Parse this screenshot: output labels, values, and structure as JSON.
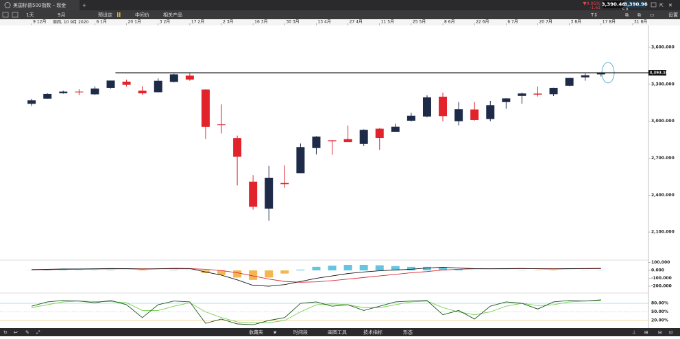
{
  "tab": {
    "title": "美国标普500指数 – 现金"
  },
  "quote": {
    "change_pct": "▼0.05%",
    "change": "-1.61",
    "sell": "3,390.46",
    "buy": "3,390.96",
    "spread": "5.0"
  },
  "toolbar": {
    "interval": "1天",
    "range": "9月",
    "items": [
      "预设定",
      "中间价",
      "相关产品"
    ],
    "settings": "设置"
  },
  "footer": {
    "items": [
      "收藏夹",
      "时间段",
      "画图工具",
      "技术指标",
      "形态"
    ]
  },
  "chart_data": [
    {
      "type": "candlestick",
      "crosshair_label": "周四, 10 9月 2020",
      "xlim": [
        -2,
        39
      ],
      "xticks": [
        {
          "value": 0,
          "label": "9 12月"
        },
        {
          "value": 4,
          "label": "6 1月"
        },
        {
          "value": 6,
          "label": "20 1月"
        },
        {
          "value": 8,
          "label": "3 2月"
        },
        {
          "value": 10,
          "label": "17 2月"
        },
        {
          "value": 12,
          "label": "2 3月"
        },
        {
          "value": 14,
          "label": "16 3月"
        },
        {
          "value": 16,
          "label": "30 3月"
        },
        {
          "value": 18,
          "label": "13 4月"
        },
        {
          "value": 20,
          "label": "27 4月"
        },
        {
          "value": 22,
          "label": "11 5月"
        },
        {
          "value": 24,
          "label": "25 5月"
        },
        {
          "value": 26,
          "label": "8 6月"
        },
        {
          "value": 28,
          "label": "22 6月"
        },
        {
          "value": 30,
          "label": "6 7月"
        },
        {
          "value": 32,
          "label": "20 7月"
        },
        {
          "value": 34,
          "label": "3 8月"
        },
        {
          "value": 36,
          "label": "17 8月"
        },
        {
          "value": 38,
          "label": "31 8月"
        }
      ],
      "ylim": [
        1877.8,
        3777.8
      ],
      "yticks": [
        {
          "value": 3600,
          "label": "3,600.000"
        },
        {
          "value": 3300,
          "label": "3,300.000"
        },
        {
          "value": 3000,
          "label": "3,000.000"
        },
        {
          "value": 2700,
          "label": "2,700.000"
        },
        {
          "value": 2400,
          "label": "2,400.000"
        },
        {
          "value": 2100,
          "label": "2,100.000"
        }
      ],
      "open": [
        3141,
        3183,
        3227,
        3240,
        3218,
        3271,
        3321,
        3248,
        3235,
        3319,
        3370,
        3257,
        2974,
        2863,
        2509,
        2290,
        2498,
        2578,
        2782,
        2845,
        2854,
        2815,
        2939,
        2914,
        3004,
        3038,
        3199,
        3000,
        3095,
        3018,
        3155,
        3205,
        3224,
        3219,
        3288,
        3356,
        3380
      ],
      "high": [
        3182,
        3226,
        3248,
        3259,
        3282,
        3329,
        3337,
        3285,
        3347,
        3385,
        3393,
        3259,
        3136,
        2883,
        2562,
        2637,
        2641,
        2819,
        2879,
        2845,
        2965,
        2934,
        2945,
        2980,
        3068,
        3211,
        3233,
        3155,
        3155,
        3165,
        3186,
        3233,
        3280,
        3272,
        3352,
        3387,
        3395
      ],
      "low": [
        3123,
        3183,
        3223,
        3212,
        3214,
        3264,
        3281,
        3214,
        3235,
        3315,
        3328,
        2855,
        2900,
        2478,
        2281,
        2192,
        2459,
        2578,
        2730,
        2727,
        2847,
        2798,
        2767,
        2914,
        2998,
        3032,
        2999,
        2966,
        3005,
        3000,
        3101,
        3142,
        3200,
        3204,
        3284,
        3329,
        3362
      ],
      "close": [
        3169,
        3221,
        3240,
        3235,
        3265,
        3330,
        3295,
        3226,
        3328,
        3380,
        3338,
        2954,
        2972,
        2711,
        2305,
        2541,
        2489,
        2790,
        2875,
        2837,
        2830,
        2930,
        2864,
        2955,
        3044,
        3194,
        3041,
        3097,
        3009,
        3130,
        3185,
        3225,
        3216,
        3271,
        3351,
        3373,
        3390.46
      ],
      "up_color": "#1d2b48",
      "down_color": "#e2232b",
      "hline": {
        "value": 3393.108,
        "label": "3,393.108"
      }
    },
    {
      "type": "macd",
      "ylim": [
        -278,
        122
      ],
      "yticks": [
        {
          "value": 100,
          "label": "100.000"
        },
        {
          "value": 0,
          "label": "0.000"
        },
        {
          "value": -100,
          "label": "-100.000"
        },
        {
          "value": -200,
          "label": "-200.000"
        }
      ],
      "macd": {
        "color": "#111111",
        "values": [
          10,
          14,
          18,
          18,
          20,
          24,
          22,
          16,
          20,
          26,
          24,
          -20,
          -60,
          -120,
          -190,
          -200,
          -180,
          -140,
          -100,
          -70,
          -40,
          -20,
          -5,
          5,
          15,
          30,
          40,
          30,
          22,
          20,
          22,
          25,
          20,
          18,
          22,
          24,
          26
        ]
      },
      "signal": {
        "color": "#d8262e",
        "values": [
          8,
          10,
          13,
          15,
          17,
          19,
          21,
          20,
          20,
          21,
          22,
          14,
          -2,
          -30,
          -70,
          -110,
          -140,
          -150,
          -145,
          -130,
          -110,
          -90,
          -70,
          -50,
          -30,
          -15,
          5,
          15,
          20,
          20,
          21,
          22,
          22,
          21,
          21,
          22,
          23
        ]
      },
      "histogram": {
        "up_color": "#3db6da",
        "down_color": "#f3a425",
        "values": [
          2,
          4,
          5,
          3,
          3,
          5,
          1,
          -4,
          0,
          5,
          2,
          -34,
          -58,
          -90,
          -120,
          -90,
          -40,
          10,
          45,
          60,
          70,
          70,
          65,
          55,
          45,
          45,
          35,
          15,
          2,
          0,
          1,
          3,
          -2,
          -3,
          1,
          2,
          3
        ]
      }
    },
    {
      "type": "stochastic",
      "ylim": [
        -1.6,
        113.6
      ],
      "yticks": [
        {
          "value": 80,
          "label": "80.00%"
        },
        {
          "value": 50,
          "label": "50.00%"
        },
        {
          "value": 20,
          "label": "20.00%"
        }
      ],
      "level_colors": [
        "#54c6e3",
        "#9a9a9a",
        "#f0b040"
      ],
      "k": {
        "color": "#17501a",
        "values": [
          70,
          85,
          90,
          88,
          82,
          90,
          75,
          30,
          75,
          88,
          85,
          10,
          25,
          8,
          5,
          20,
          30,
          80,
          85,
          70,
          75,
          55,
          70,
          85,
          88,
          90,
          40,
          55,
          25,
          70,
          85,
          80,
          60,
          85,
          90,
          88,
          92
        ]
      },
      "d": {
        "color": "#6fd24a",
        "values": [
          65,
          75,
          85,
          88,
          86,
          86,
          82,
          55,
          55,
          70,
          82,
          50,
          30,
          15,
          12,
          12,
          20,
          50,
          75,
          78,
          75,
          65,
          65,
          75,
          85,
          88,
          65,
          50,
          40,
          50,
          70,
          80,
          72,
          75,
          85,
          88,
          90
        ]
      }
    }
  ]
}
